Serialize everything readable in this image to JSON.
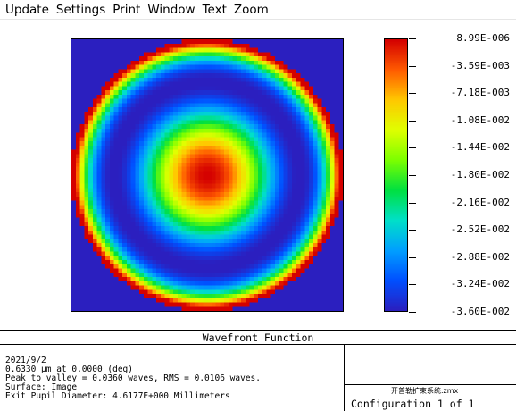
{
  "menu": {
    "items": [
      "Update",
      "Settings",
      "Print",
      "Window",
      "Text",
      "Zoom"
    ]
  },
  "plot": {
    "title": "Wavefront Function",
    "colorbar_ticks": [
      "8.99E-006",
      "-3.59E-003",
      "-7.18E-003",
      "-1.08E-002",
      "-1.44E-002",
      "-1.80E-002",
      "-2.16E-002",
      "-2.52E-002",
      "-2.88E-002",
      "-3.24E-002",
      "-3.60E-002"
    ],
    "colormap": [
      "#d40000",
      "#ff5a00",
      "#ffc800",
      "#e0ff00",
      "#7cff00",
      "#00e040",
      "#00e0c8",
      "#00a0ff",
      "#0050ff",
      "#2b1fbf"
    ],
    "background_color": "#2b1fbf"
  },
  "chart_data": {
    "type": "heatmap",
    "title": "Wavefront Function",
    "value_range": [
      -0.036,
      8.99e-06
    ],
    "units": "waves",
    "pattern": "rotationally symmetric; maximum at center, minimum ring near 0.67 of pupil radius, rising toward edge",
    "pupil_grid": 64
  },
  "info": {
    "date": "2021/9/2",
    "wavelength_line": "0.6330 µm at 0.0000 (deg)",
    "ptv_line": "Peak to valley = 0.0360 waves, RMS = 0.0106 waves.",
    "surface_line": "Surface: Image",
    "exit_pupil_line": "Exit Pupil Diameter: 4.6177E+000 Millimeters",
    "file_name": "开普勒扩束系统.zmx",
    "configuration": "Configuration 1 of 1"
  }
}
